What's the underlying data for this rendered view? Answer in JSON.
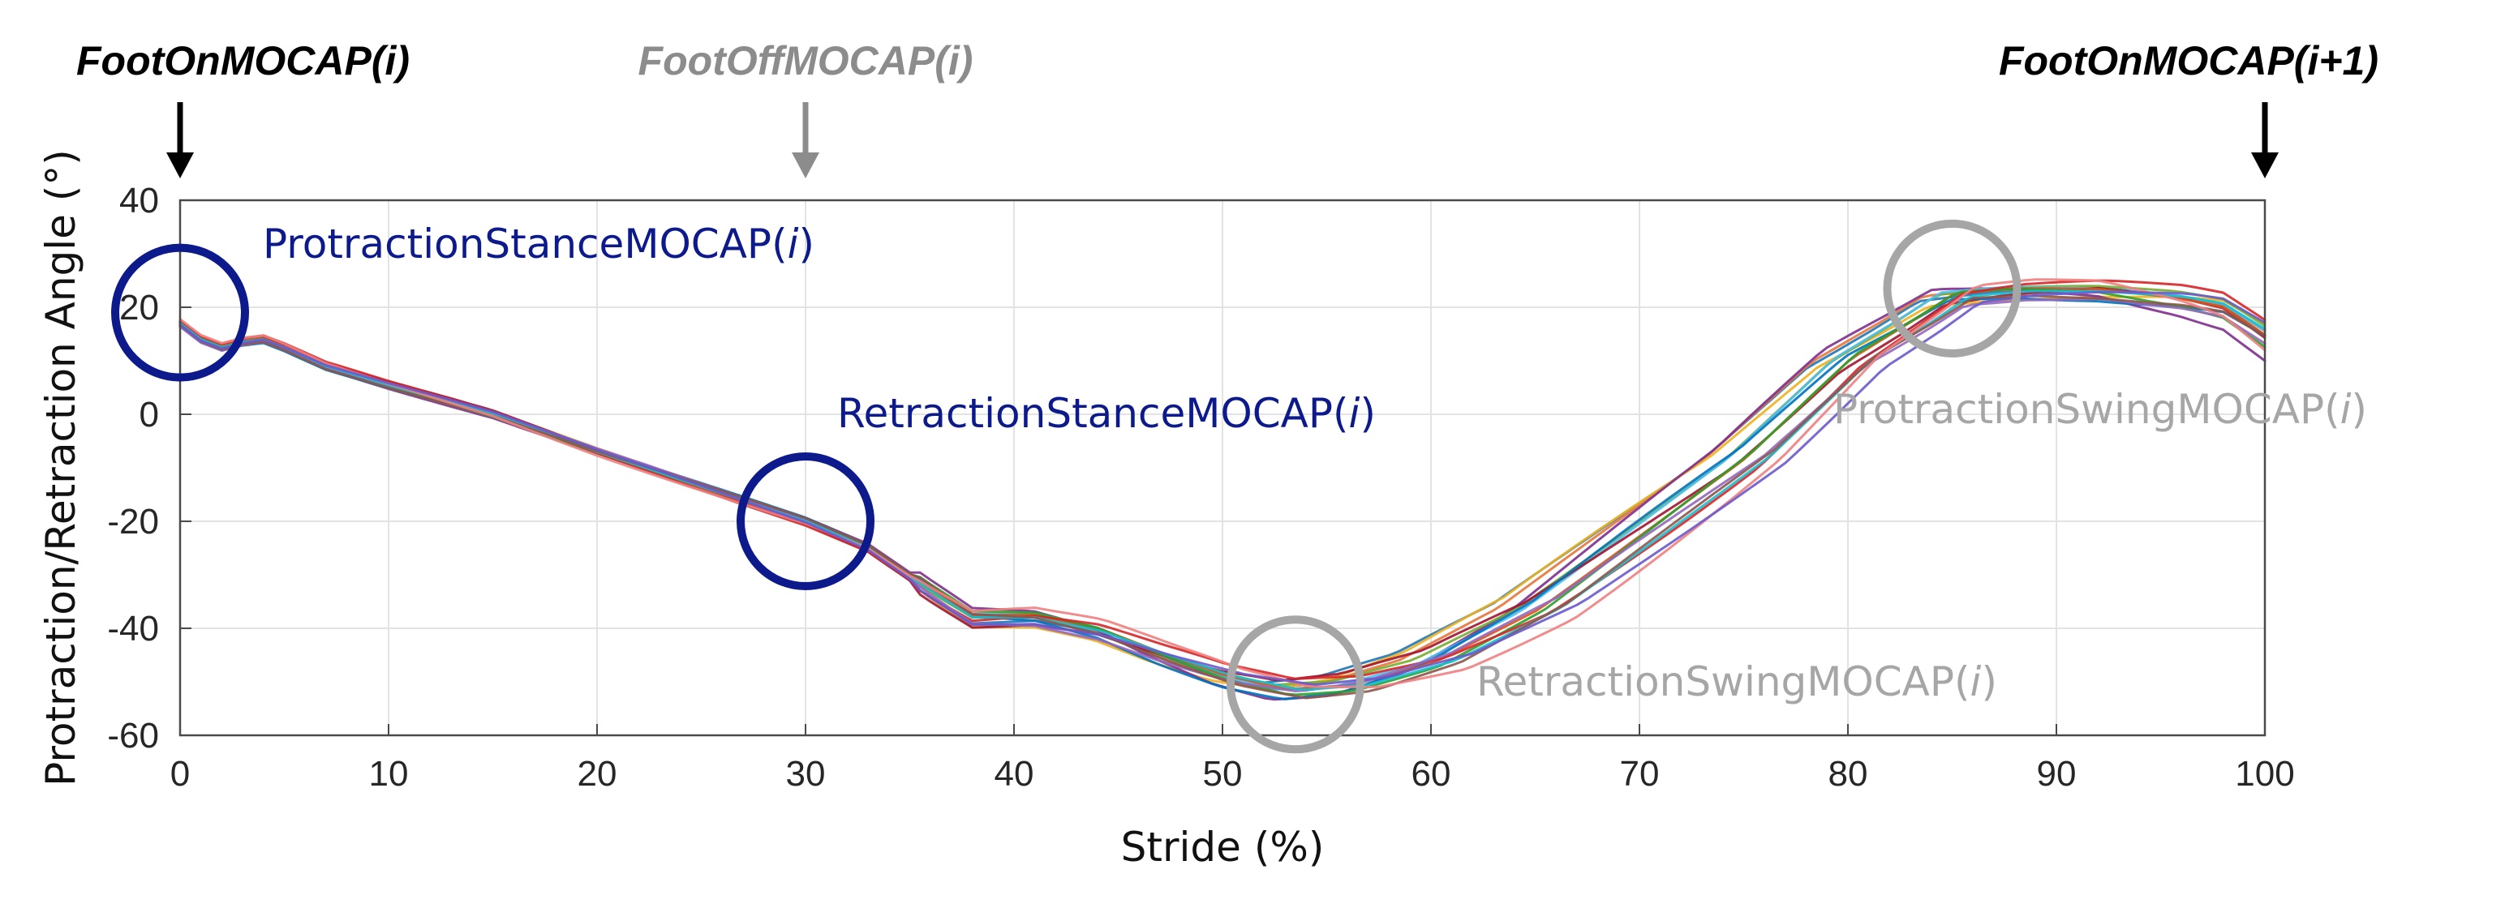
{
  "chart_data": {
    "type": "line",
    "xlabel": "Stride (%)",
    "ylabel": "Protraction/Retraction Angle (°)",
    "xlim": [
      0,
      100
    ],
    "ylim": [
      -60,
      40
    ],
    "xticks": [
      0,
      10,
      20,
      30,
      40,
      50,
      60,
      70,
      80,
      90,
      100
    ],
    "yticks": [
      40,
      20,
      0,
      -20,
      -40,
      -60
    ],
    "grid": true,
    "mean_curve": {
      "x": [
        0,
        1,
        2,
        3,
        4,
        5,
        7,
        10,
        15,
        20,
        25,
        30,
        33,
        36,
        38,
        41,
        44,
        47,
        50,
        53,
        56,
        60,
        65,
        70,
        75,
        80,
        83,
        85,
        88,
        92,
        96,
        98,
        100
      ],
      "y": [
        17,
        14,
        12.5,
        13.5,
        14,
        12.5,
        9,
        5.5,
        0,
        -7,
        -13.5,
        -20,
        -25,
        -33,
        -38,
        -38,
        -40.5,
        -45,
        -49,
        -51.5,
        -50.5,
        -46,
        -36,
        -22,
        -8,
        10,
        17,
        22,
        23,
        23,
        22.5,
        21.5,
        17
      ]
    },
    "series_colors": [
      "#1f77b4",
      "#e8743b",
      "#edb120",
      "#7e2f8e",
      "#77ac30",
      "#4dbeee",
      "#a2142f",
      "#0072bd",
      "#d95319",
      "#2ca02c",
      "#d62728",
      "#9467bd",
      "#17becf",
      "#8c564b",
      "#f08080",
      "#6a5acd"
    ],
    "events": [
      {
        "label_prefix": "FootOnMOCAP(",
        "label_var": "i",
        "label_suffix": ")",
        "x": 0,
        "color": "#000000"
      },
      {
        "label_prefix": "FootOffMOCAP(",
        "label_var": "i",
        "label_suffix": ")",
        "x": 30,
        "color": "#8c8c8c"
      },
      {
        "label_prefix": "FootOnMOCAP(",
        "label_var": "",
        "label_suffix": "i+1)",
        "x": 100,
        "color": "#000000"
      }
    ],
    "annotations": [
      {
        "label_prefix": "ProtractionStanceMOCAP(",
        "label_var": "i",
        "label_suffix": ")",
        "x": 0,
        "y": 19,
        "color": "#0c1a8c"
      },
      {
        "label_prefix": "RetractionStanceMOCAP(",
        "label_var": "i",
        "label_suffix": ")",
        "x": 30,
        "y": -20,
        "color": "#0c1a8c"
      },
      {
        "label_prefix": "RetractionSwingMOCAP(",
        "label_var": "i",
        "label_suffix": ")",
        "x": 53.5,
        "y": -50.5,
        "color": "#a6a6a6"
      },
      {
        "label_prefix": "ProtractionSwingMOCAP(",
        "label_var": "i",
        "label_suffix": ")",
        "x": 85,
        "y": 23.5,
        "color": "#a6a6a6"
      }
    ]
  }
}
